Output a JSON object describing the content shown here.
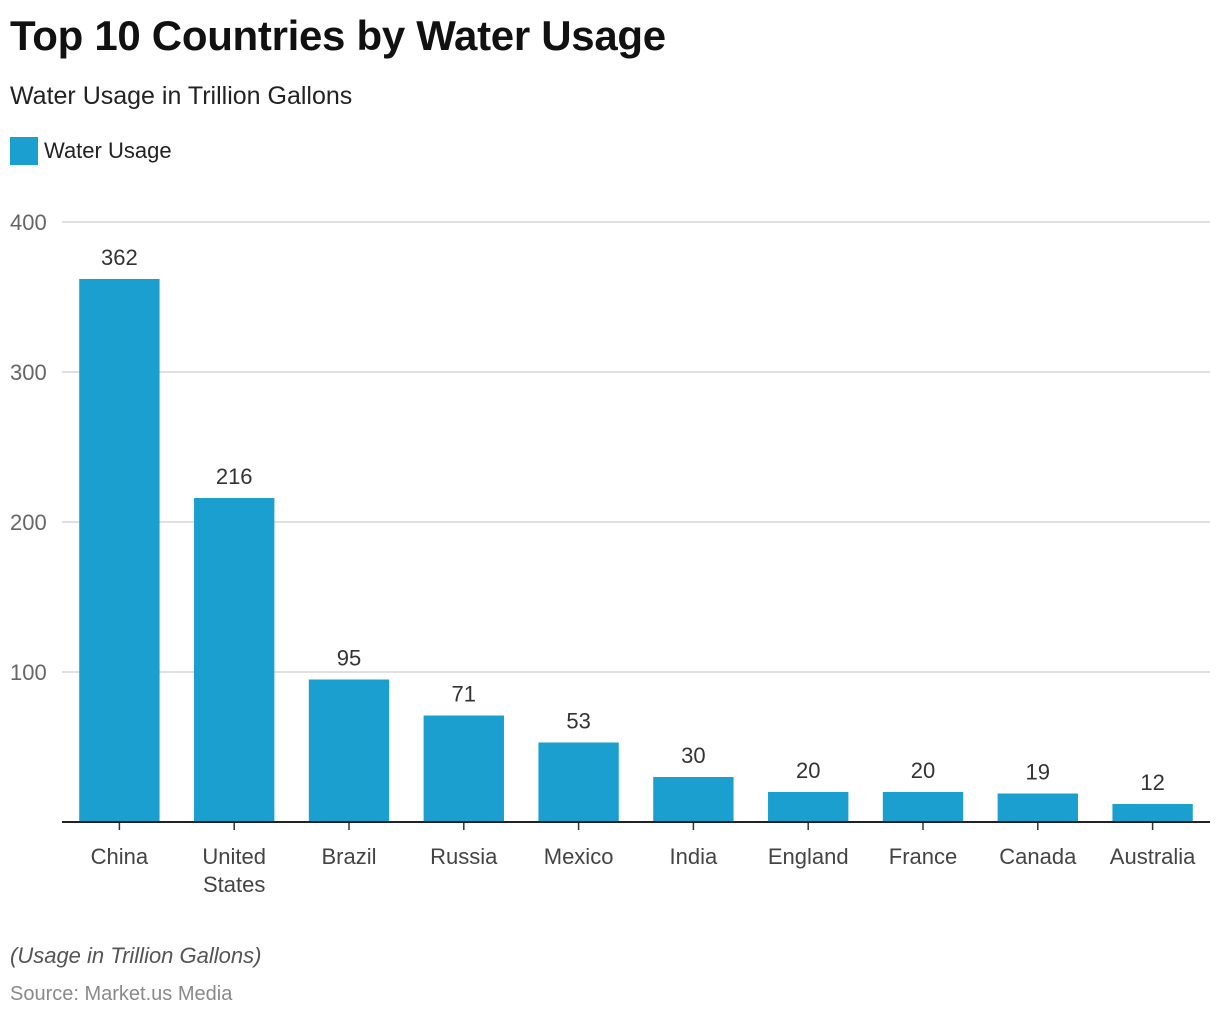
{
  "header": {
    "title": "Top 10 Countries by Water Usage",
    "subtitle": "Water Usage in Trillion Gallons"
  },
  "legend": {
    "label": "Water Usage",
    "color": "#1a9fcf"
  },
  "footer": {
    "note": "(Usage in Trillion Gallons)",
    "source": "Source: Market.us Media"
  },
  "chart_data": {
    "type": "bar",
    "title": "Top 10 Countries by Water Usage",
    "subtitle": "Water Usage in Trillion Gallons",
    "xlabel": "",
    "ylabel": "",
    "ylim": [
      0,
      400
    ],
    "yticks": [
      100,
      200,
      300,
      400
    ],
    "grid": true,
    "legend_position": "top-left",
    "categories": [
      "China",
      "United States",
      "Brazil",
      "Russia",
      "Mexico",
      "India",
      "England",
      "France",
      "Canada",
      "Australia"
    ],
    "series": [
      {
        "name": "Water Usage",
        "color": "#1a9fcf",
        "values": [
          362,
          216,
          95,
          71,
          53,
          30,
          20,
          20,
          19,
          12
        ]
      }
    ]
  }
}
